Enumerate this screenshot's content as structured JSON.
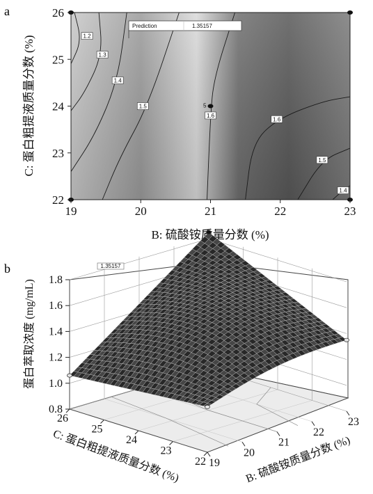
{
  "chart_data": [
    {
      "type": "contour",
      "panel_label": "a",
      "xlabel": "B: 硫酸铵质量分数 (%)",
      "ylabel": "C: 蛋白粗提液质量分数 (%)",
      "xlim": [
        19,
        23
      ],
      "ylim": [
        22,
        26
      ],
      "xticks": [
        "19",
        "20",
        "21",
        "22",
        "23"
      ],
      "yticks": [
        "22",
        "23",
        "24",
        "25",
        "26"
      ],
      "contour_levels": [
        {
          "label": "1.2",
          "x": 19.23,
          "y": 25.5
        },
        {
          "label": "1.3",
          "x": 19.45,
          "y": 25.1
        },
        {
          "label": "1.4",
          "x": 19.67,
          "y": 24.55
        },
        {
          "label": "1.5",
          "x": 20.03,
          "y": 24.0
        },
        {
          "label": "1.6",
          "x": 21.0,
          "y": 23.8
        },
        {
          "label": "1.6",
          "x": 21.95,
          "y": 23.72
        },
        {
          "label": "1.5",
          "x": 22.6,
          "y": 22.85
        },
        {
          "label": "1.4",
          "x": 22.9,
          "y": 22.2
        }
      ],
      "design_points": [
        {
          "x": 19,
          "y": 22
        },
        {
          "x": 19,
          "y": 26
        },
        {
          "x": 23,
          "y": 22
        },
        {
          "x": 23,
          "y": 26
        },
        {
          "x": 21,
          "y": 24,
          "label": "5"
        }
      ],
      "prediction": {
        "label": "Prediction",
        "value": "1.35157",
        "x": 19.8,
        "y": 25.5
      }
    },
    {
      "type": "surface3d",
      "panel_label": "b",
      "xlabel": "B: 硫酸铵质量分数 (%)",
      "ylabel": "C: 蛋白粗提液质量分数 (%)",
      "zlabel": "蛋白萃取浓度 (mg/mL)",
      "xticks": [
        "19",
        "20",
        "21",
        "22",
        "23"
      ],
      "yticks": [
        "22",
        "23",
        "24",
        "25",
        "26"
      ],
      "zticks": [
        "0.8",
        "1.0",
        "1.2",
        "1.4",
        "1.6",
        "1.8"
      ],
      "xlim": [
        19,
        23
      ],
      "ylim": [
        22,
        26
      ],
      "zlim": [
        0.8,
        1.8
      ],
      "corner_values": [
        {
          "x": 19,
          "y": 26,
          "z": 1.06
        },
        {
          "x": 19,
          "y": 22,
          "z": 1.15
        },
        {
          "x": 23,
          "y": 26,
          "z": 1.85
        },
        {
          "x": 23,
          "y": 22,
          "z": 1.35
        }
      ],
      "prediction_value": "1.35157"
    }
  ]
}
